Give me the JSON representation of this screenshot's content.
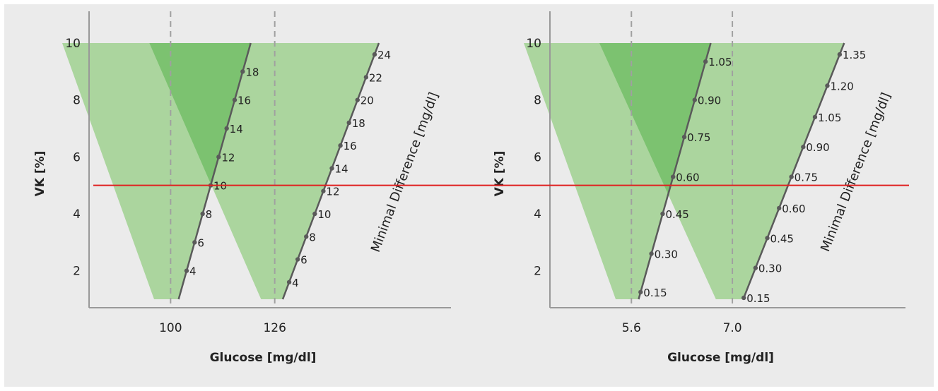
{
  "colors": {
    "background": "#ebebeb",
    "wedge_light": "#a8d49a",
    "wedge_dark": "#7cc270",
    "reference_line": "#e02020",
    "dashed_line": "#a0a0a0",
    "scale_line": "#5a5a5a",
    "axis": "#999999"
  },
  "chart_data": [
    {
      "type": "area",
      "ylabel": "VK [%]",
      "xlabel": "Glucose [mg/dl]",
      "ylim": [
        1,
        10
      ],
      "y_ticks": [
        "2",
        "4",
        "6",
        "8",
        "10"
      ],
      "x_ticks": [
        {
          "label": "100",
          "value": 100
        },
        {
          "label": "126",
          "value": 126
        }
      ],
      "xlim": [
        80,
        170
      ],
      "dashed_lines": [
        100,
        126
      ],
      "reference_line_y": 5,
      "scale_title": "Minimal Difference [mg/dl]",
      "inner_scale": {
        "start": {
          "x": 102,
          "y": 1
        },
        "end": {
          "x": 120,
          "y": 10
        },
        "labels": [
          {
            "label": "4",
            "y": 2
          },
          {
            "label": "6",
            "y": 3
          },
          {
            "label": "8",
            "y": 4
          },
          {
            "label": "10",
            "y": 5
          },
          {
            "label": "12",
            "y": 6
          },
          {
            "label": "14",
            "y": 7
          },
          {
            "label": "16",
            "y": 8
          },
          {
            "label": "18",
            "y": 9
          }
        ]
      },
      "outer_scale": {
        "start": {
          "x": 128,
          "y": 1
        },
        "end": {
          "x": 152,
          "y": 10
        },
        "labels": [
          {
            "label": "4",
            "y": 1.6
          },
          {
            "label": "6",
            "y": 2.4
          },
          {
            "label": "8",
            "y": 3.2
          },
          {
            "label": "10",
            "y": 4.0
          },
          {
            "label": "12",
            "y": 4.8
          },
          {
            "label": "14",
            "y": 5.6
          },
          {
            "label": "16",
            "y": 6.4
          },
          {
            "label": "18",
            "y": 7.2
          },
          {
            "label": "20",
            "y": 8.0
          },
          {
            "label": "22",
            "y": 8.8
          },
          {
            "label": "24",
            "y": 9.6
          }
        ]
      }
    },
    {
      "type": "area",
      "ylabel": "VK [%]",
      "xlabel": "Glucose [mg/dl]",
      "ylim": [
        1,
        10
      ],
      "y_ticks": [
        "2",
        "4",
        "6",
        "8",
        "10"
      ],
      "x_ticks": [
        {
          "label": "5.6",
          "value": 5.6
        },
        {
          "label": "7.0",
          "value": 7.0
        }
      ],
      "xlim": [
        4.5,
        9.4
      ],
      "dashed_lines": [
        5.6,
        7.0
      ],
      "reference_line_y": 5,
      "scale_title": "Minimal Difference [mg/dl]",
      "inner_scale": {
        "start": {
          "x": 5.7,
          "y": 1
        },
        "end": {
          "x": 6.7,
          "y": 10
        },
        "labels": [
          {
            "label": "0.15",
            "y": 1.25
          },
          {
            "label": "0.30",
            "y": 2.6
          },
          {
            "label": "0.45",
            "y": 4.0
          },
          {
            "label": "0.60",
            "y": 5.3
          },
          {
            "label": "0.75",
            "y": 6.7
          },
          {
            "label": "0.90",
            "y": 8.0
          },
          {
            "label": "1.05",
            "y": 9.35
          }
        ]
      },
      "outer_scale": {
        "start": {
          "x": 7.15,
          "y": 1
        },
        "end": {
          "x": 8.55,
          "y": 10
        },
        "labels": [
          {
            "label": "0.15",
            "y": 1.05
          },
          {
            "label": "0.30",
            "y": 2.1
          },
          {
            "label": "0.45",
            "y": 3.15
          },
          {
            "label": "0.60",
            "y": 4.2
          },
          {
            "label": "0.75",
            "y": 5.3
          },
          {
            "label": "0.90",
            "y": 6.35
          },
          {
            "label": "1.05",
            "y": 7.4
          },
          {
            "label": "1.20",
            "y": 8.5
          },
          {
            "label": "1.35",
            "y": 9.6
          }
        ]
      }
    }
  ]
}
